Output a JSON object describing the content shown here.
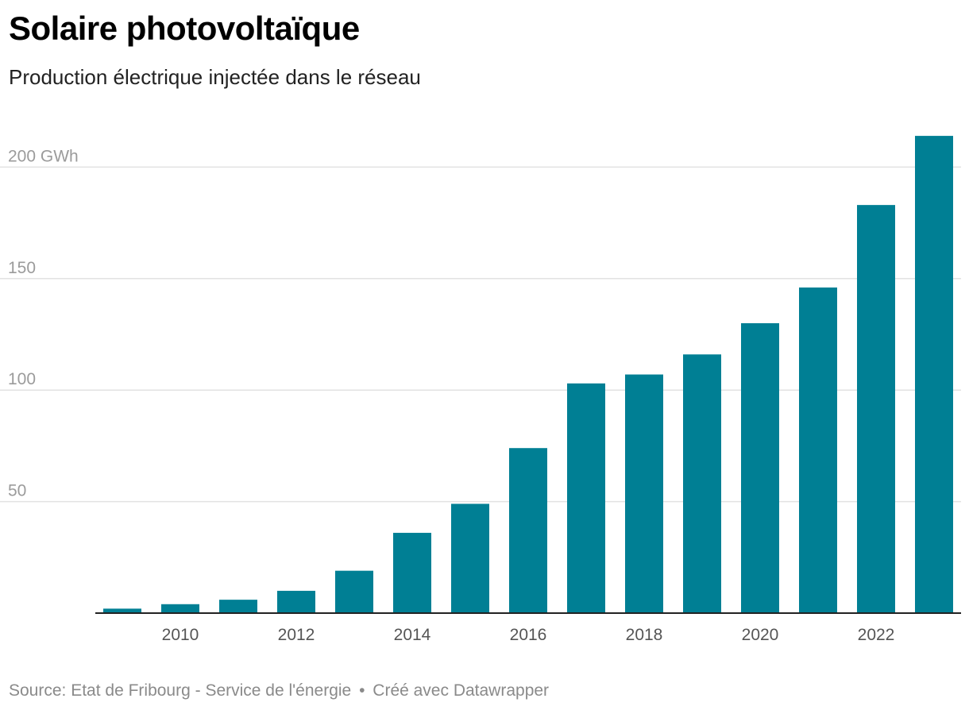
{
  "header": {
    "title": "Solaire photovoltaïque",
    "subtitle": "Production électrique injectée dans le réseau"
  },
  "footer": {
    "source": "Source: Etat de Fribourg - Service de l'énergie",
    "separator": "•",
    "credit": "Créé avec Datawrapper"
  },
  "colors": {
    "bar": "#007f94",
    "grid": "#e2e2e2",
    "axis": "#222222"
  },
  "chart_data": {
    "type": "bar",
    "title": "Solaire photovoltaïque",
    "subtitle": "Production électrique injectée dans le réseau",
    "xlabel": "",
    "ylabel": "GWh",
    "categories": [
      2009,
      2010,
      2011,
      2012,
      2013,
      2014,
      2015,
      2016,
      2017,
      2018,
      2019,
      2020,
      2021,
      2022,
      2023
    ],
    "values": [
      2,
      4,
      6,
      10,
      19,
      36,
      49,
      74,
      103,
      107,
      116,
      130,
      146,
      183,
      214
    ],
    "ylim": [
      0,
      215
    ],
    "y_ticks": [
      50,
      100,
      150,
      200
    ],
    "y_tick_labels": [
      "50",
      "100",
      "150",
      "200 GWh"
    ],
    "x_tick_labels": [
      "2010",
      "2012",
      "2014",
      "2016",
      "2018",
      "2020",
      "2022"
    ],
    "grid": true
  }
}
